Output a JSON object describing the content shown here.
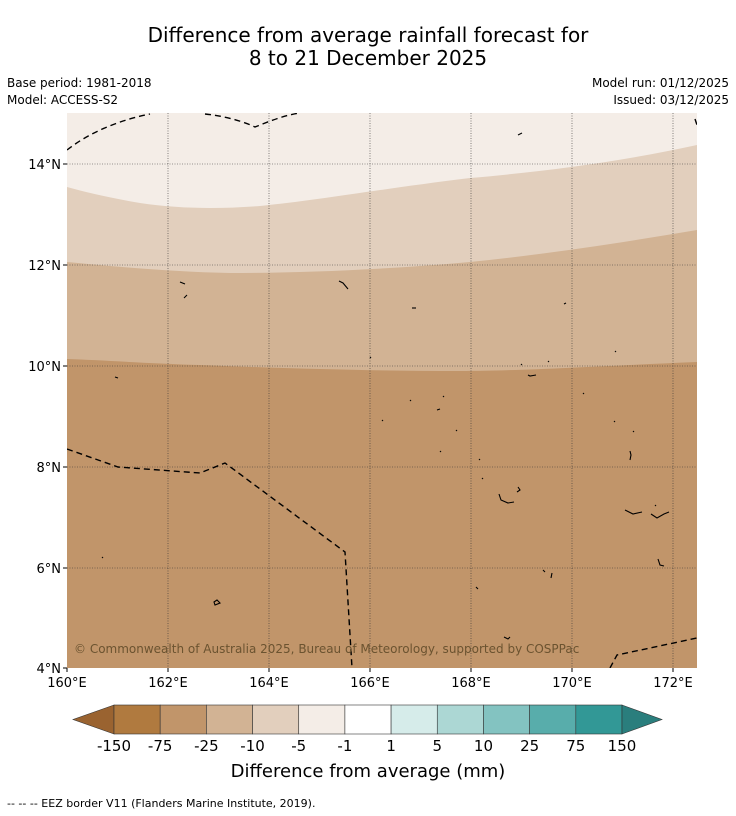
{
  "title": {
    "line1": "Difference from average rainfall forecast for",
    "line2": "8 to 21 December 2025"
  },
  "meta": {
    "base_period": "Base period: 1981-2018",
    "model": "Model: ACCESS-S2",
    "model_run": "Model run: 01/12/2025",
    "issued": "Issued: 03/12/2025"
  },
  "map": {
    "copyright": "© Commonwealth of Australia 2025, Bureau of Meteorology, supported by COSPPac",
    "lat_labels": [
      "14°N",
      "12°N",
      "10°N",
      "8°N",
      "6°N",
      "4°N"
    ],
    "lon_labels": [
      "160°E",
      "162°E",
      "164°E",
      "166°E",
      "168°E",
      "170°E",
      "172°E"
    ],
    "bands": [
      {
        "range": "-1 to -5",
        "color": "#f4ede7"
      },
      {
        "range": "-5 to -10",
        "color": "#e2cfbd"
      },
      {
        "range": "-10 to -25",
        "color": "#d2b394"
      },
      {
        "range": "-25 to -75",
        "color": "#c1956a"
      }
    ]
  },
  "colorbar": {
    "title": "Difference from average (mm)",
    "ticks": [
      "-150",
      "-75",
      "-25",
      "-10",
      "-5",
      "-1",
      "1",
      "5",
      "10",
      "25",
      "75",
      "150"
    ],
    "colors": [
      "#9a6330",
      "#b07a3f",
      "#c1956a",
      "#d2b394",
      "#e2cfbd",
      "#f4ede7",
      "#ffffff",
      "#d6ecea",
      "#acd7d4",
      "#83c3c1",
      "#58adab",
      "#329896",
      "#2a7e7d"
    ]
  },
  "footnote": "--  --  -- EEZ border V11 (Flanders Marine Institute, 2019)."
}
